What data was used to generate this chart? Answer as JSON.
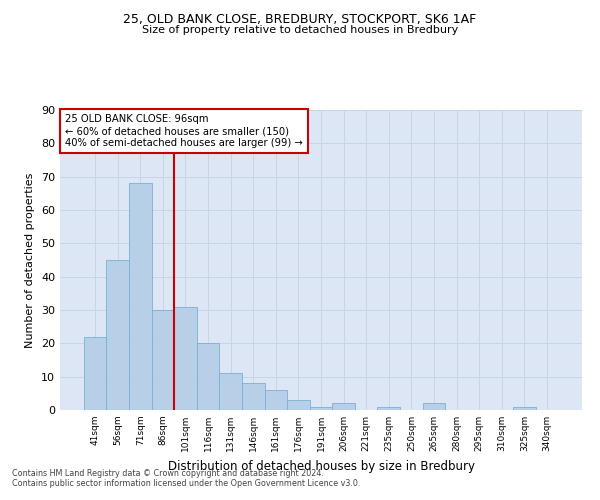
{
  "title1": "25, OLD BANK CLOSE, BREDBURY, STOCKPORT, SK6 1AF",
  "title2": "Size of property relative to detached houses in Bredbury",
  "xlabel": "Distribution of detached houses by size in Bredbury",
  "ylabel": "Number of detached properties",
  "categories": [
    "41sqm",
    "56sqm",
    "71sqm",
    "86sqm",
    "101sqm",
    "116sqm",
    "131sqm",
    "146sqm",
    "161sqm",
    "176sqm",
    "191sqm",
    "206sqm",
    "221sqm",
    "235sqm",
    "250sqm",
    "265sqm",
    "280sqm",
    "295sqm",
    "310sqm",
    "325sqm",
    "340sqm"
  ],
  "values": [
    22,
    45,
    68,
    30,
    31,
    20,
    11,
    8,
    6,
    3,
    1,
    2,
    0,
    1,
    0,
    2,
    0,
    0,
    0,
    1,
    0
  ],
  "bar_color": "#b8cfe8",
  "bar_edge_color": "#7aafd4",
  "vline_x_index": 3.5,
  "vline_color": "#cc0000",
  "annotation_line1": "25 OLD BANK CLOSE: 96sqm",
  "annotation_line2": "← 60% of detached houses are smaller (150)",
  "annotation_line3": "40% of semi-detached houses are larger (99) →",
  "box_edge_color": "#cc0000",
  "ylim": [
    0,
    90
  ],
  "yticks": [
    0,
    10,
    20,
    30,
    40,
    50,
    60,
    70,
    80,
    90
  ],
  "grid_color": "#c8d4e8",
  "background_color": "#dce6f5",
  "footer1": "Contains HM Land Registry data © Crown copyright and database right 2024.",
  "footer2": "Contains public sector information licensed under the Open Government Licence v3.0."
}
